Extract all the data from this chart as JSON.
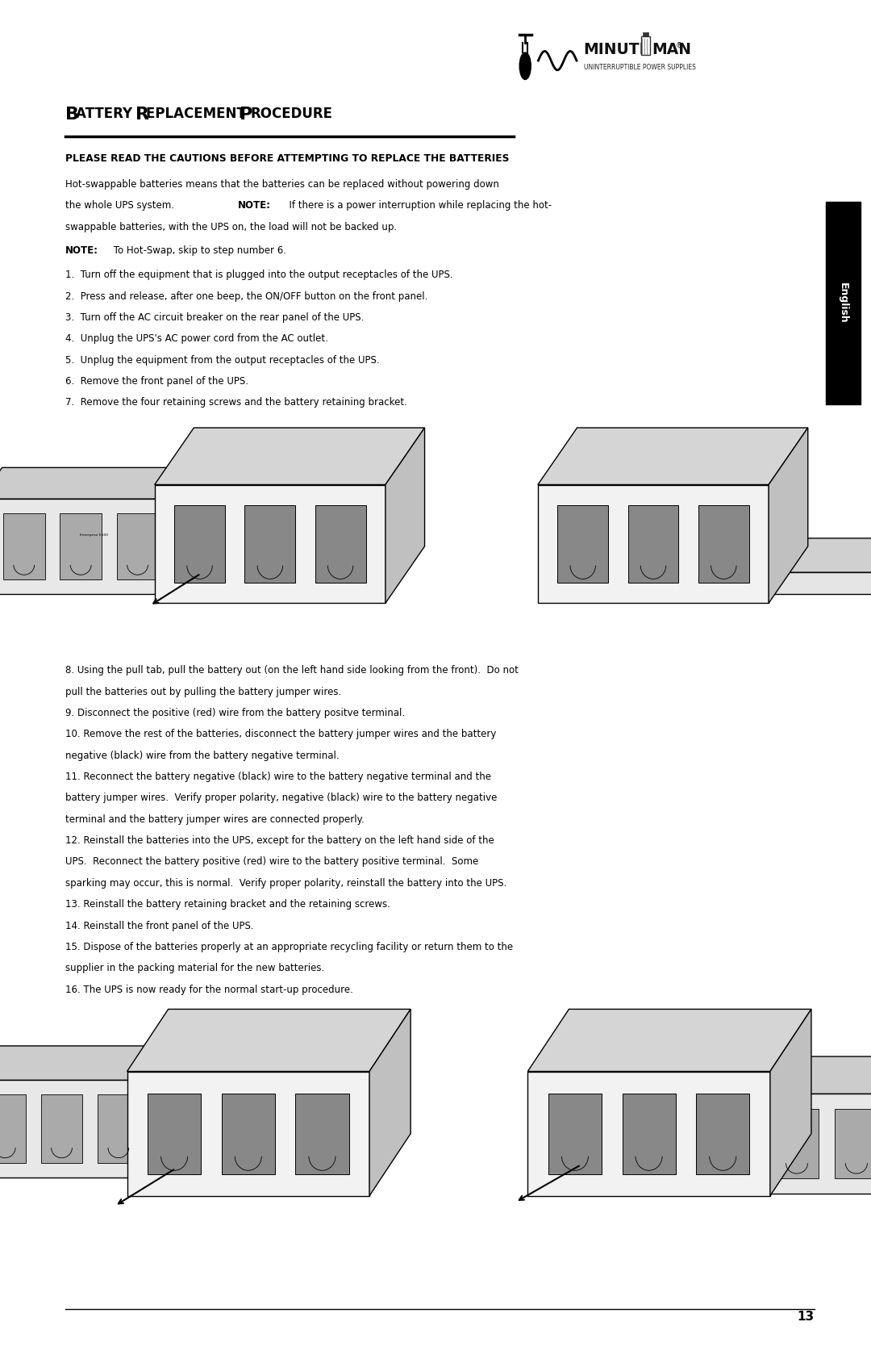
{
  "bg_color": "#ffffff",
  "text_color": "#000000",
  "title": "BATTERY REPLACEMENT PROCEDURE",
  "section_bold": "PLEASE READ THE CAUTIONS BEFORE ATTEMPTING TO REPLACE THE BATTERIES",
  "steps1": [
    "1.  Turn off the equipment that is plugged into the output receptacles of the UPS.",
    "2.  Press and release, after one beep, the ON/OFF button on the front panel.",
    "3.  Turn off the AC circuit breaker on the rear panel of the UPS.",
    "4.  Unplug the UPS's AC power cord from the AC outlet.",
    "5.  Unplug the equipment from the output receptacles of the UPS.",
    "6.  Remove the front panel of the UPS.",
    "7.  Remove the four retaining screws and the battery retaining bracket."
  ],
  "steps2": [
    "8. Using the pull tab, pull the battery out (on the left hand side looking from the front).  Do not\npull the batteries out by pulling the battery jumper wires.",
    "9. Disconnect the positive (red) wire from the battery positve terminal.",
    "10. Remove the rest of the batteries, disconnect the battery jumper wires and the battery\nnegative (black) wire from the battery negative terminal.",
    "11. Reconnect the battery negative (black) wire to the battery negative terminal and the\nbattery jumper wires.  Verify proper polarity, negative (black) wire to the battery negative\nterminal and the battery jumper wires are connected properly.",
    "12. Reinstall the batteries into the UPS, except for the battery on the left hand side of the\nUPS.  Reconnect the battery positive (red) wire to the battery positive terminal.  Some\nsparking may occur, this is normal.  Verify proper polarity, reinstall the battery into the UPS.",
    "13. Reinstall the battery retaining bracket and the retaining screws.",
    "14. Reinstall the front panel of the UPS.",
    "15. Dispose of the batteries properly at an appropriate recycling facility or return them to the\nsupplier in the packing material for the new batteries.",
    "16. The UPS is now ready for the normal start-up procedure."
  ],
  "english_tab": "English",
  "page_number": "13"
}
